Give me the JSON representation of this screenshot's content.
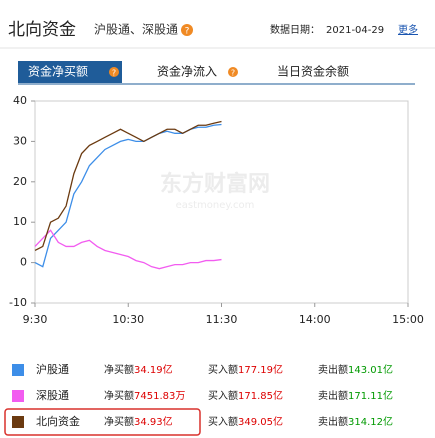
{
  "header": {
    "title": "北向资金",
    "subtitle": "沪股通、深股通",
    "help": "?",
    "date_label": "数据日期：",
    "date": "2021-04-29",
    "more": "更多"
  },
  "tabs": [
    {
      "label": "资金净买额",
      "help": "?"
    },
    {
      "label": "资金净流入",
      "help": "?"
    },
    {
      "label": "当日资金余额"
    }
  ],
  "watermark": {
    "name": "东方财富网",
    "site": "eastmoney.com"
  },
  "chart_data": {
    "type": "line",
    "x": [
      0,
      5,
      10,
      15,
      20,
      25,
      30,
      35,
      40,
      45,
      50,
      55,
      60,
      65,
      70,
      75,
      80,
      85,
      90,
      95,
      100,
      105,
      110,
      115,
      120
    ],
    "xlim": [
      0,
      240
    ],
    "xticks": [
      {
        "value": 0,
        "label": "9:30"
      },
      {
        "value": 60,
        "label": "10:30"
      },
      {
        "value": 120,
        "label": "11:30"
      },
      {
        "value": 180,
        "label": "14:00"
      },
      {
        "value": 240,
        "label": "15:00"
      }
    ],
    "ylim": [
      -10,
      40
    ],
    "yticks": [
      -10,
      0,
      10,
      20,
      30,
      40
    ],
    "series": [
      {
        "name": "沪股通",
        "color": "#3d8ee8",
        "values": [
          0,
          -1,
          6,
          8,
          10,
          17,
          20,
          24,
          26,
          28,
          29,
          30,
          30.5,
          30,
          30,
          31,
          32,
          32.5,
          32,
          32,
          33,
          33.5,
          33.5,
          34,
          34.19
        ]
      },
      {
        "name": "深股通",
        "color": "#f25cf0",
        "values": [
          4,
          6,
          8,
          5,
          4,
          4,
          5,
          5.5,
          4,
          3,
          2.5,
          2,
          1.5,
          0.5,
          0,
          -1,
          -1.5,
          -1,
          -0.5,
          -0.5,
          0,
          0,
          0.5,
          0.5,
          0.75
        ]
      },
      {
        "name": "北向资金",
        "color": "#6b3a10",
        "values": [
          3,
          4,
          10,
          11,
          14,
          22,
          27,
          29,
          30,
          31,
          32,
          33,
          32,
          31,
          30,
          31,
          32,
          33,
          33,
          32,
          33,
          34,
          34,
          34.5,
          34.93
        ]
      }
    ]
  },
  "summary": [
    {
      "net_label": "净买额",
      "net": "34.19亿",
      "buy_label": "买入额",
      "buy": "177.19亿",
      "sell_label": "卖出额",
      "sell": "143.01亿"
    },
    {
      "net_label": "净买额",
      "net": "7451.83万",
      "buy_label": "买入额",
      "buy": "171.85亿",
      "sell_label": "卖出额",
      "sell": "171.11亿"
    },
    {
      "net_label": "净买额",
      "net": "34.93亿",
      "buy_label": "买入额",
      "buy": "349.05亿",
      "sell_label": "卖出额",
      "sell": "314.12亿"
    }
  ]
}
